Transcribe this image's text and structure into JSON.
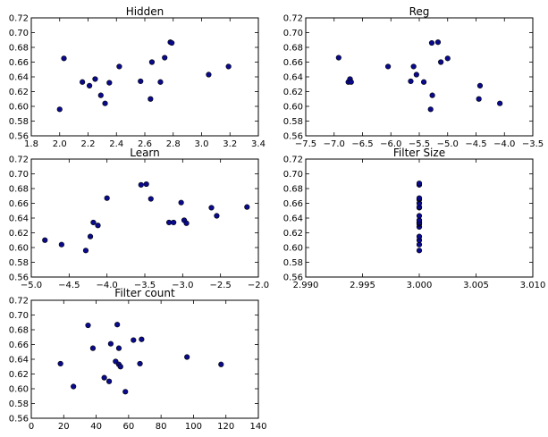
{
  "colors": {
    "marker_fill": "#0a0a8c",
    "marker_edge": "#000000",
    "background": "#ffffff"
  },
  "chart_data": [
    {
      "type": "scatter",
      "title": "Hidden",
      "xlabel": "",
      "ylabel": "",
      "xlim": [
        1.8,
        3.4
      ],
      "ylim": [
        0.56,
        0.72
      ],
      "xticks": [
        "1.8",
        "2.0",
        "2.2",
        "2.4",
        "2.6",
        "2.8",
        "3.0",
        "3.2",
        "3.4"
      ],
      "yticks": [
        "0.56",
        "0.58",
        "0.60",
        "0.62",
        "0.64",
        "0.66",
        "0.68",
        "0.70",
        "0.72"
      ],
      "x": [
        2.0,
        2.03,
        2.16,
        2.21,
        2.25,
        2.29,
        2.32,
        2.35,
        2.42,
        2.57,
        2.64,
        2.65,
        2.71,
        2.74,
        2.78,
        2.79,
        3.05,
        3.19
      ],
      "y": [
        0.596,
        0.665,
        0.633,
        0.628,
        0.637,
        0.615,
        0.604,
        0.632,
        0.654,
        0.634,
        0.61,
        0.66,
        0.633,
        0.666,
        0.687,
        0.686,
        0.643,
        0.654
      ]
    },
    {
      "type": "scatter",
      "title": "Reg",
      "xlabel": "",
      "ylabel": "",
      "xlim": [
        -7.5,
        -3.5
      ],
      "ylim": [
        0.56,
        0.72
      ],
      "xticks": [
        "−7.5",
        "−7.0",
        "−6.5",
        "−6.0",
        "−5.5",
        "−5.0",
        "−4.5",
        "−4.0",
        "−3.5"
      ],
      "yticks": [
        "0.56",
        "0.58",
        "0.60",
        "0.62",
        "0.64",
        "0.66",
        "0.68",
        "0.70",
        "0.72"
      ],
      "x": [
        -6.92,
        -6.75,
        -6.72,
        -6.7,
        -6.05,
        -5.65,
        -5.6,
        -5.55,
        -5.42,
        -5.3,
        -5.28,
        -5.27,
        -5.17,
        -5.12,
        -5.0,
        -4.45,
        -4.43,
        -4.08
      ],
      "y": [
        0.666,
        0.633,
        0.637,
        0.633,
        0.654,
        0.634,
        0.654,
        0.643,
        0.633,
        0.596,
        0.686,
        0.615,
        0.687,
        0.66,
        0.665,
        0.61,
        0.628,
        0.604
      ]
    },
    {
      "type": "scatter",
      "title": "Learn",
      "xlabel": "",
      "ylabel": "",
      "xlim": [
        -5.0,
        -2.0
      ],
      "ylim": [
        0.56,
        0.72
      ],
      "xticks": [
        "−5.0",
        "−4.5",
        "−4.0",
        "−3.5",
        "−3.0",
        "−2.5",
        "−2.0"
      ],
      "yticks": [
        "0.56",
        "0.58",
        "0.60",
        "0.62",
        "0.64",
        "0.66",
        "0.68",
        "0.70",
        "0.72"
      ],
      "x": [
        -4.82,
        -4.6,
        -4.28,
        -4.22,
        -4.18,
        -4.12,
        -4.0,
        -3.55,
        -3.48,
        -3.42,
        -3.18,
        -3.12,
        -3.02,
        -2.98,
        -2.95,
        -2.62,
        -2.55,
        -2.15
      ],
      "y": [
        0.61,
        0.604,
        0.596,
        0.615,
        0.634,
        0.63,
        0.667,
        0.685,
        0.686,
        0.666,
        0.634,
        0.634,
        0.661,
        0.637,
        0.633,
        0.654,
        0.643,
        0.655
      ]
    },
    {
      "type": "scatter",
      "title": "Filter Size",
      "xlabel": "",
      "ylabel": "",
      "xlim": [
        2.99,
        3.01
      ],
      "ylim": [
        0.56,
        0.72
      ],
      "xticks": [
        "2.990",
        "2.995",
        "3.000",
        "3.005",
        "3.010"
      ],
      "yticks": [
        "0.56",
        "0.58",
        "0.60",
        "0.62",
        "0.64",
        "0.66",
        "0.68",
        "0.70",
        "0.72"
      ],
      "x": [
        3.0,
        3.0,
        3.0,
        3.0,
        3.0,
        3.0,
        3.0,
        3.0,
        3.0,
        3.0,
        3.0,
        3.0,
        3.0,
        3.0,
        3.0,
        3.0,
        3.0,
        3.0
      ],
      "y": [
        0.596,
        0.604,
        0.61,
        0.615,
        0.628,
        0.632,
        0.633,
        0.634,
        0.637,
        0.643,
        0.654,
        0.655,
        0.66,
        0.665,
        0.666,
        0.667,
        0.685,
        0.687
      ]
    },
    {
      "type": "scatter",
      "title": "Filter count",
      "xlabel": "",
      "ylabel": "",
      "xlim": [
        0,
        140
      ],
      "ylim": [
        0.56,
        0.72
      ],
      "xticks": [
        "0",
        "20",
        "40",
        "60",
        "80",
        "100",
        "120",
        "140"
      ],
      "yticks": [
        "0.56",
        "0.58",
        "0.60",
        "0.62",
        "0.64",
        "0.66",
        "0.68",
        "0.70",
        "0.72"
      ],
      "x": [
        18,
        26,
        35,
        38,
        45,
        48,
        49,
        52,
        53,
        54,
        54,
        55,
        58,
        63,
        67,
        68,
        96,
        117
      ],
      "y": [
        0.634,
        0.603,
        0.686,
        0.655,
        0.615,
        0.61,
        0.661,
        0.637,
        0.687,
        0.655,
        0.633,
        0.63,
        0.596,
        0.666,
        0.634,
        0.667,
        0.643,
        0.633
      ]
    }
  ]
}
